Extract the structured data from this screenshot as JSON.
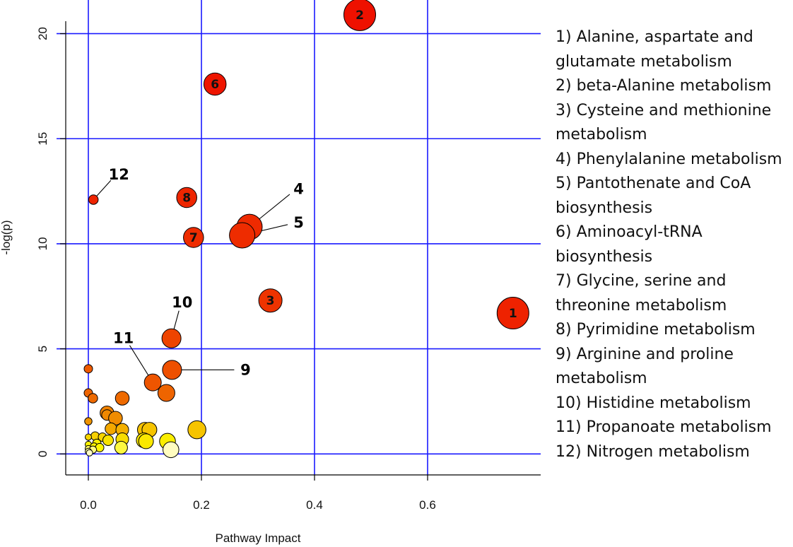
{
  "chart_data": {
    "type": "scatter",
    "title": "",
    "xlabel": "Pathway Impact",
    "ylabel": "-log(p)",
    "xlim": [
      -0.04,
      0.8
    ],
    "ylim": [
      -1.0,
      21.6
    ],
    "xticks": [
      0.0,
      0.2,
      0.4,
      0.6
    ],
    "xtick_labels": [
      "0.0",
      "0.2",
      "0.4",
      "0.6"
    ],
    "yticks": [
      0,
      5,
      10,
      15,
      20
    ],
    "ytick_labels": [
      "0",
      "5",
      "10",
      "15",
      "20"
    ],
    "grid": true,
    "grid_color": "#1a1aff",
    "legend_position": "right",
    "color_scale": [
      "#ffffe0",
      "#ffff00",
      "#ffa500",
      "#ff0000"
    ],
    "labeled_points": [
      {
        "id": "1",
        "name": "Alanine, aspartate and glutamate metabolism",
        "x": 0.751,
        "y": 6.7,
        "size": 3,
        "color": "#ee2200",
        "label_inside": true
      },
      {
        "id": "2",
        "name": "beta-Alanine metabolism",
        "x": 0.48,
        "y": 20.9,
        "size": 3,
        "color": "#ee1100",
        "label_inside": true
      },
      {
        "id": "3",
        "name": "Cysteine and methionine metabolism",
        "x": 0.322,
        "y": 7.3,
        "size": 2.2,
        "color": "#ee3300",
        "label_inside": true
      },
      {
        "id": "4",
        "name": "Phenylalanine metabolism",
        "x": 0.285,
        "y": 10.8,
        "size": 2.4,
        "color": "#ee2a00",
        "label_inside": false,
        "label_x": 0.372,
        "label_y": 12.6
      },
      {
        "id": "5",
        "name": "Pantothenate and CoA biosynthesis",
        "x": 0.272,
        "y": 10.4,
        "size": 2.4,
        "color": "#ee2c00",
        "label_inside": false,
        "label_x": 0.372,
        "label_y": 11.0
      },
      {
        "id": "6",
        "name": "Aminoacyl-tRNA biosynthesis",
        "x": 0.224,
        "y": 17.6,
        "size": 2.1,
        "color": "#ee1500",
        "label_inside": true
      },
      {
        "id": "7",
        "name": "Glycine, serine and threonine metabolism",
        "x": 0.186,
        "y": 10.3,
        "size": 1.9,
        "color": "#ee2c00",
        "label_inside": true
      },
      {
        "id": "8",
        "name": "Pyrimidine metabolism",
        "x": 0.174,
        "y": 12.2,
        "size": 1.9,
        "color": "#ee2600",
        "label_inside": true
      },
      {
        "id": "9",
        "name": "Arginine and proline metabolism",
        "x": 0.148,
        "y": 4.0,
        "size": 1.8,
        "color": "#ee5000",
        "label_inside": false,
        "label_x": 0.278,
        "label_y": 4.0
      },
      {
        "id": "10",
        "name": "Histidine metabolism",
        "x": 0.147,
        "y": 5.5,
        "size": 1.8,
        "color": "#ee4400",
        "label_inside": false,
        "label_x": 0.166,
        "label_y": 7.2
      },
      {
        "id": "11",
        "name": "Propanoate metabolism",
        "x": 0.114,
        "y": 3.4,
        "size": 1.6,
        "color": "#ee5500",
        "label_inside": false,
        "label_x": 0.062,
        "label_y": 5.5
      },
      {
        "id": "12",
        "name": "Nitrogen metabolism",
        "x": 0.009,
        "y": 12.1,
        "size": 0.9,
        "color": "#ee2400",
        "label_inside": false,
        "label_x": 0.054,
        "label_y": 13.3
      }
    ],
    "other_points": [
      {
        "x": 0.0,
        "y": 4.05,
        "size": 0.8,
        "color": "#ee5a00"
      },
      {
        "x": 0.0,
        "y": 2.9,
        "size": 0.8,
        "color": "#ee6400"
      },
      {
        "x": 0.008,
        "y": 2.65,
        "size": 0.9,
        "color": "#ee6a00"
      },
      {
        "x": 0.06,
        "y": 2.65,
        "size": 1.3,
        "color": "#ee6a00"
      },
      {
        "x": 0.138,
        "y": 2.9,
        "size": 1.6,
        "color": "#ee6400"
      },
      {
        "x": 0.033,
        "y": 1.95,
        "size": 1.3,
        "color": "#f08200"
      },
      {
        "x": 0.033,
        "y": 1.85,
        "size": 1.0,
        "color": "#f08800"
      },
      {
        "x": 0.048,
        "y": 1.7,
        "size": 1.3,
        "color": "#f08c00"
      },
      {
        "x": 0.0,
        "y": 1.55,
        "size": 0.7,
        "color": "#f09400"
      },
      {
        "x": 0.04,
        "y": 1.2,
        "size": 1.1,
        "color": "#f4a800"
      },
      {
        "x": 0.06,
        "y": 1.15,
        "size": 1.2,
        "color": "#f4b000"
      },
      {
        "x": 0.1,
        "y": 1.15,
        "size": 1.4,
        "color": "#f6c200"
      },
      {
        "x": 0.108,
        "y": 1.15,
        "size": 1.4,
        "color": "#f6c400"
      },
      {
        "x": 0.192,
        "y": 1.15,
        "size": 1.7,
        "color": "#f6c400"
      },
      {
        "x": 0.012,
        "y": 0.85,
        "size": 0.8,
        "color": "#f6d000"
      },
      {
        "x": 0.025,
        "y": 0.8,
        "size": 0.8,
        "color": "#f6d400"
      },
      {
        "x": 0.0,
        "y": 0.8,
        "size": 0.6,
        "color": "#f6d400"
      },
      {
        "x": 0.06,
        "y": 0.7,
        "size": 1.2,
        "color": "#f8dc00"
      },
      {
        "x": 0.035,
        "y": 0.65,
        "size": 1.0,
        "color": "#f8e200"
      },
      {
        "x": 0.098,
        "y": 0.65,
        "size": 1.4,
        "color": "#fae800"
      },
      {
        "x": 0.102,
        "y": 0.6,
        "size": 1.4,
        "color": "#fae800"
      },
      {
        "x": 0.14,
        "y": 0.6,
        "size": 1.5,
        "color": "#faee00"
      },
      {
        "x": 0.015,
        "y": 0.5,
        "size": 0.8,
        "color": "#faf000"
      },
      {
        "x": 0.0,
        "y": 0.45,
        "size": 0.6,
        "color": "#fbf200"
      },
      {
        "x": 0.01,
        "y": 0.35,
        "size": 0.7,
        "color": "#fcf400"
      },
      {
        "x": 0.02,
        "y": 0.3,
        "size": 0.8,
        "color": "#fcf600"
      },
      {
        "x": 0.058,
        "y": 0.3,
        "size": 1.2,
        "color": "#fdf840"
      },
      {
        "x": 0.0,
        "y": 0.25,
        "size": 0.6,
        "color": "#fdf860"
      },
      {
        "x": 0.008,
        "y": 0.2,
        "size": 0.7,
        "color": "#fefa80"
      },
      {
        "x": 0.0,
        "y": 0.12,
        "size": 0.6,
        "color": "#fefaa0"
      },
      {
        "x": 0.002,
        "y": 0.05,
        "size": 0.6,
        "color": "#fffcc8"
      },
      {
        "x": 0.146,
        "y": 0.2,
        "size": 1.5,
        "color": "#fffcc0"
      }
    ],
    "legend_items": [
      "1) Alanine, aspartate and glutamate metabolism",
      "2) beta-Alanine metabolism",
      "3) Cysteine and methionine metabolism",
      "4) Phenylalanine metabolism",
      "5) Pantothenate and CoA biosynthesis",
      "6) Aminoacyl-tRNA biosynthesis",
      "7) Glycine, serine and threonine metabolism",
      "8) Pyrimidine metabolism",
      "9) Arginine and proline metabolism",
      "10) Histidine metabolism",
      "11) Propanoate metabolism",
      "12) Nitrogen metabolism"
    ]
  }
}
